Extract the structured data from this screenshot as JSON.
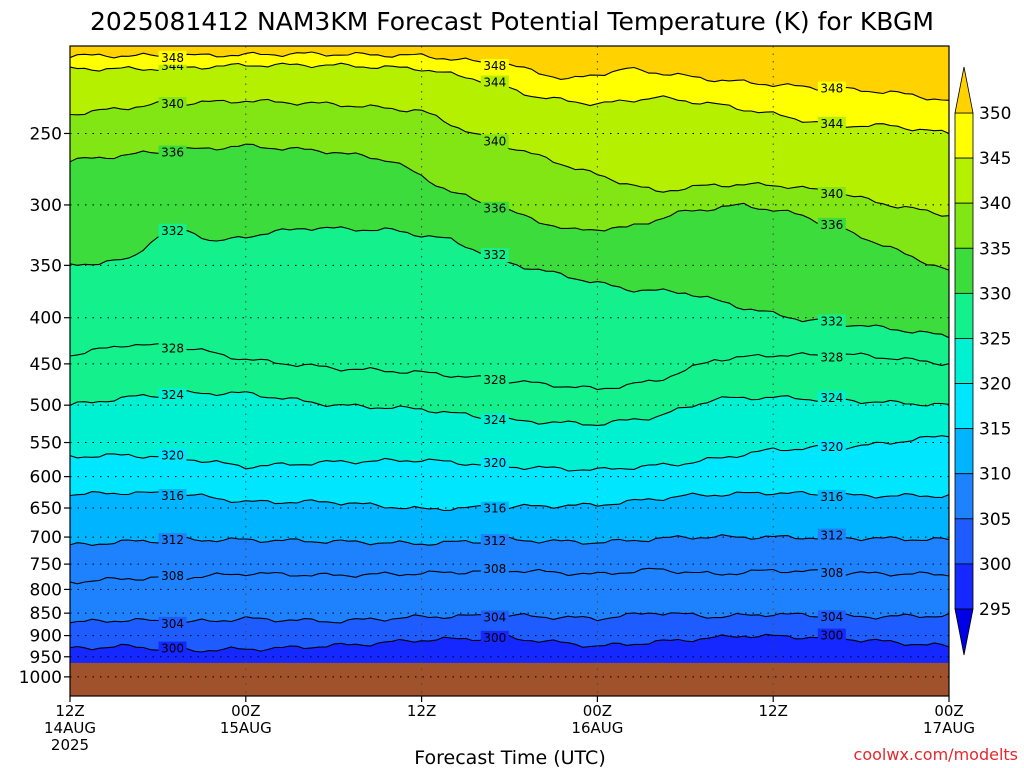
{
  "chart_data": {
    "type": "heatmap",
    "title": "2025081412 NAM3KM Forecast Potential Temperature (K) for KBGM",
    "xlabel": "Forecast Time (UTC)",
    "ylabel": "",
    "x_ticks": [
      {
        "hour": 0,
        "line1": "12Z",
        "line2": "14AUG",
        "line3": "2025"
      },
      {
        "hour": 12,
        "line1": "00Z",
        "line2": "15AUG",
        "line3": ""
      },
      {
        "hour": 24,
        "line1": "12Z",
        "line2": "",
        "line3": ""
      },
      {
        "hour": 36,
        "line1": "00Z",
        "line2": "16AUG",
        "line3": ""
      },
      {
        "hour": 48,
        "line1": "12Z",
        "line2": "",
        "line3": ""
      },
      {
        "hour": 60,
        "line1": "00Z",
        "line2": "17AUG",
        "line3": ""
      }
    ],
    "xlim": [
      0,
      60
    ],
    "y_ticks": [
      250,
      300,
      350,
      400,
      450,
      500,
      550,
      600,
      650,
      700,
      750,
      800,
      850,
      900,
      950,
      1000
    ],
    "ylim": [
      200,
      1050
    ],
    "y_scale": "log",
    "y_inverted": true,
    "surface_pressure": 965,
    "grid": true,
    "colorbar": {
      "ticks": [
        295,
        300,
        305,
        310,
        315,
        320,
        325,
        330,
        335,
        340,
        345,
        350
      ],
      "colors": [
        "#0000e6",
        "#1428ff",
        "#1e5cff",
        "#1e82ff",
        "#00b4ff",
        "#00e6ff",
        "#00f0d2",
        "#14f08c",
        "#3cdc3c",
        "#82e614",
        "#b4f000",
        "#ffff00",
        "#ffd200"
      ],
      "range": [
        290,
        355
      ]
    },
    "series": [
      {
        "value": 300,
        "levels": [
          [
            0,
            930
          ],
          [
            4,
            925
          ],
          [
            8,
            935
          ],
          [
            14,
            930
          ],
          [
            20,
            920
          ],
          [
            24,
            910
          ],
          [
            30,
            905
          ],
          [
            36,
            925
          ],
          [
            40,
            915
          ],
          [
            46,
            900
          ],
          [
            52,
            905
          ],
          [
            56,
            915
          ],
          [
            60,
            925
          ]
        ]
      },
      {
        "value": 304,
        "levels": [
          [
            0,
            870
          ],
          [
            4,
            865
          ],
          [
            8,
            870
          ],
          [
            12,
            862
          ],
          [
            18,
            868
          ],
          [
            24,
            858
          ],
          [
            30,
            855
          ],
          [
            36,
            862
          ],
          [
            40,
            848
          ],
          [
            44,
            858
          ],
          [
            48,
            852
          ],
          [
            54,
            858
          ],
          [
            60,
            855
          ]
        ]
      },
      {
        "value": 308,
        "levels": [
          [
            0,
            785
          ],
          [
            4,
            778
          ],
          [
            8,
            776
          ],
          [
            12,
            768
          ],
          [
            18,
            772
          ],
          [
            24,
            768
          ],
          [
            30,
            762
          ],
          [
            36,
            770
          ],
          [
            40,
            760
          ],
          [
            44,
            770
          ],
          [
            48,
            762
          ],
          [
            54,
            768
          ],
          [
            60,
            770
          ]
        ]
      },
      {
        "value": 312,
        "levels": [
          [
            0,
            715
          ],
          [
            4,
            708
          ],
          [
            8,
            705
          ],
          [
            12,
            705
          ],
          [
            18,
            708
          ],
          [
            24,
            712
          ],
          [
            30,
            705
          ],
          [
            36,
            710
          ],
          [
            42,
            700
          ],
          [
            48,
            700
          ],
          [
            54,
            702
          ],
          [
            60,
            705
          ]
        ]
      },
      {
        "value": 316,
        "levels": [
          [
            0,
            628
          ],
          [
            4,
            625
          ],
          [
            8,
            628
          ],
          [
            12,
            640
          ],
          [
            18,
            640
          ],
          [
            24,
            652
          ],
          [
            30,
            648
          ],
          [
            36,
            645
          ],
          [
            42,
            630
          ],
          [
            48,
            625
          ],
          [
            54,
            630
          ],
          [
            60,
            630
          ]
        ]
      },
      {
        "value": 320,
        "levels": [
          [
            0,
            570
          ],
          [
            4,
            568
          ],
          [
            8,
            573
          ],
          [
            12,
            585
          ],
          [
            18,
            578
          ],
          [
            24,
            575
          ],
          [
            30,
            585
          ],
          [
            36,
            590
          ],
          [
            42,
            580
          ],
          [
            48,
            560
          ],
          [
            54,
            555
          ],
          [
            60,
            540
          ]
        ]
      },
      {
        "value": 324,
        "levels": [
          [
            0,
            500
          ],
          [
            4,
            490
          ],
          [
            8,
            485
          ],
          [
            12,
            485
          ],
          [
            18,
            500
          ],
          [
            24,
            505
          ],
          [
            30,
            520
          ],
          [
            36,
            525
          ],
          [
            40,
            515
          ],
          [
            44,
            492
          ],
          [
            48,
            490
          ],
          [
            54,
            495
          ],
          [
            60,
            500
          ]
        ]
      },
      {
        "value": 328,
        "levels": [
          [
            0,
            440
          ],
          [
            4,
            428
          ],
          [
            8,
            432
          ],
          [
            12,
            445
          ],
          [
            18,
            455
          ],
          [
            24,
            460
          ],
          [
            30,
            470
          ],
          [
            36,
            480
          ],
          [
            40,
            470
          ],
          [
            44,
            445
          ],
          [
            48,
            440
          ],
          [
            54,
            440
          ],
          [
            60,
            450
          ]
        ]
      },
      {
        "value": 332,
        "levels": [
          [
            0,
            350
          ],
          [
            4,
            345
          ],
          [
            6,
            325
          ],
          [
            8,
            320
          ],
          [
            10,
            330
          ],
          [
            12,
            325
          ],
          [
            16,
            318
          ],
          [
            22,
            320
          ],
          [
            26,
            328
          ],
          [
            30,
            348
          ],
          [
            34,
            360
          ],
          [
            38,
            372
          ],
          [
            42,
            375
          ],
          [
            46,
            390
          ],
          [
            50,
            402
          ],
          [
            54,
            408
          ],
          [
            58,
            415
          ],
          [
            60,
            420
          ]
        ]
      },
      {
        "value": 336,
        "levels": [
          [
            0,
            268
          ],
          [
            6,
            262
          ],
          [
            12,
            258
          ],
          [
            18,
            262
          ],
          [
            22,
            268
          ],
          [
            26,
            290
          ],
          [
            30,
            305
          ],
          [
            34,
            320
          ],
          [
            38,
            318
          ],
          [
            42,
            305
          ],
          [
            46,
            300
          ],
          [
            50,
            308
          ],
          [
            54,
            325
          ],
          [
            58,
            345
          ],
          [
            60,
            355
          ]
        ]
      },
      {
        "value": 340,
        "levels": [
          [
            0,
            238
          ],
          [
            6,
            232
          ],
          [
            12,
            230
          ],
          [
            18,
            232
          ],
          [
            24,
            236
          ],
          [
            28,
            252
          ],
          [
            32,
            265
          ],
          [
            36,
            278
          ],
          [
            40,
            290
          ],
          [
            44,
            285
          ],
          [
            48,
            285
          ],
          [
            52,
            290
          ],
          [
            56,
            300
          ],
          [
            60,
            308
          ]
        ]
      },
      {
        "value": 344,
        "levels": [
          [
            0,
            212
          ],
          [
            6,
            212
          ],
          [
            12,
            210
          ],
          [
            18,
            210
          ],
          [
            24,
            212
          ],
          [
            28,
            218
          ],
          [
            32,
            228
          ],
          [
            36,
            232
          ],
          [
            40,
            228
          ],
          [
            44,
            232
          ],
          [
            48,
            238
          ],
          [
            52,
            245
          ],
          [
            56,
            245
          ],
          [
            60,
            250
          ]
        ]
      },
      {
        "value": 348,
        "levels": [
          [
            0,
            205
          ],
          [
            8,
            205
          ],
          [
            16,
            204
          ],
          [
            24,
            205
          ],
          [
            30,
            210
          ],
          [
            34,
            218
          ],
          [
            38,
            212
          ],
          [
            44,
            218
          ],
          [
            50,
            222
          ],
          [
            56,
            225
          ],
          [
            60,
            230
          ]
        ]
      }
    ]
  },
  "credit": "coolwx.com/modelts"
}
